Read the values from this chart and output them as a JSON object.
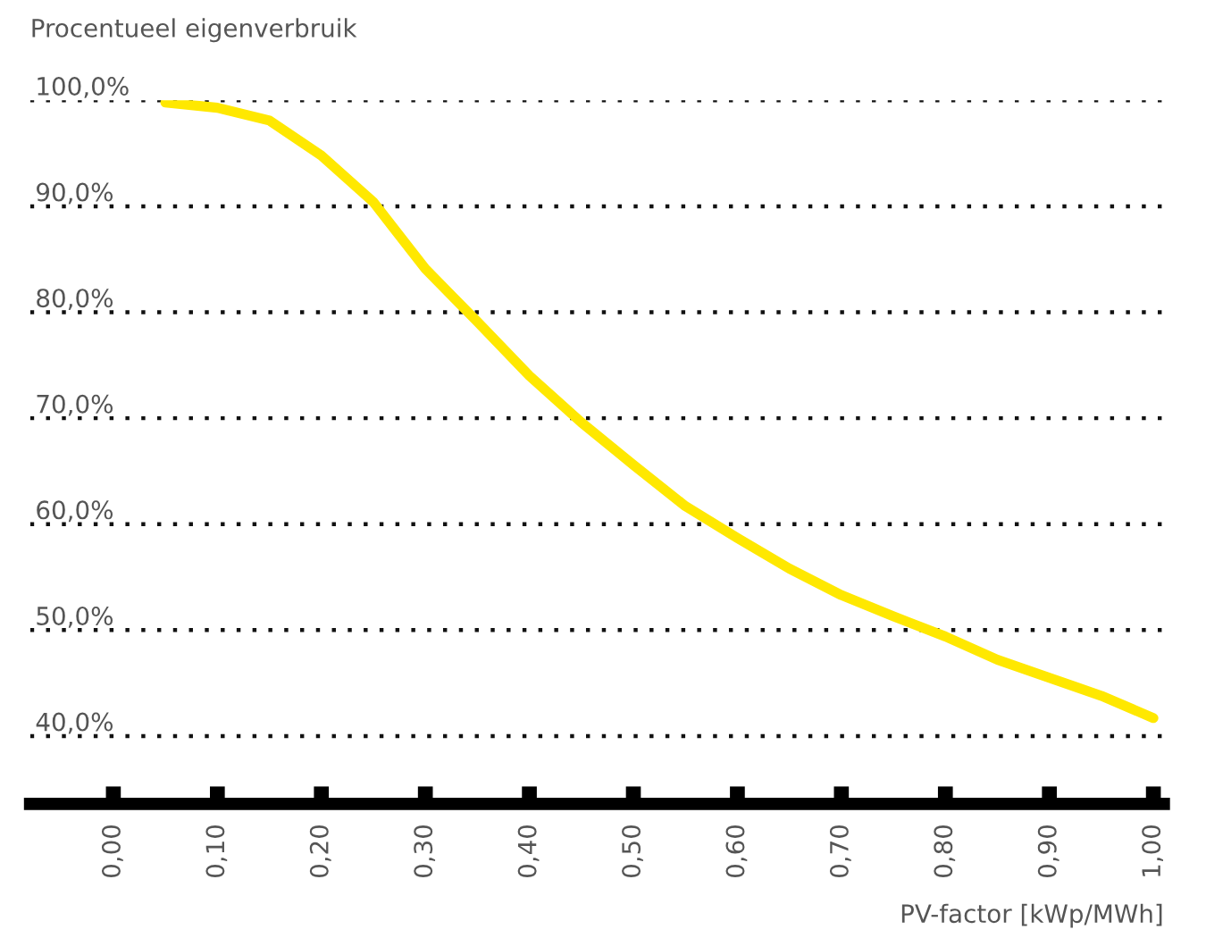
{
  "chart_data": {
    "type": "line",
    "ylabel": "Procentueel eigenverbruik",
    "xlabel": "PV-factor [kWp/MWh]",
    "x": [
      0.05,
      0.1,
      0.15,
      0.2,
      0.25,
      0.3,
      0.35,
      0.4,
      0.45,
      0.5,
      0.55,
      0.6,
      0.65,
      0.7,
      0.75,
      0.8,
      0.85,
      0.9,
      0.95,
      1.0
    ],
    "series": [
      {
        "color": "#ffe800",
        "values": [
          99.8,
          99.3,
          98.1,
          94.8,
          90.4,
          84.1,
          79.1,
          74.0,
          69.6,
          65.6,
          61.7,
          58.7,
          55.8,
          53.3,
          51.3,
          49.4,
          47.2,
          45.5,
          43.8,
          41.7
        ]
      }
    ],
    "xlim": [
      -0.08,
      1.01
    ],
    "ylim": [
      33.6,
      100
    ],
    "xticks": [
      {
        "value": 0,
        "label": "0,00"
      },
      {
        "value": 0.1,
        "label": "0,10"
      },
      {
        "value": 0.2,
        "label": "0,20"
      },
      {
        "value": 0.3,
        "label": "0,30"
      },
      {
        "value": 0.4,
        "label": "0,40"
      },
      {
        "value": 0.5,
        "label": "0,50"
      },
      {
        "value": 0.6,
        "label": "0,60"
      },
      {
        "value": 0.7,
        "label": "0,70"
      },
      {
        "value": 0.8,
        "label": "0,80"
      },
      {
        "value": 0.9,
        "label": "0,90"
      },
      {
        "value": 1.0,
        "label": "1,00"
      }
    ],
    "yticks": [
      {
        "value": 40,
        "label": "40,0%"
      },
      {
        "value": 50,
        "label": "50,0%"
      },
      {
        "value": 60,
        "label": "60,0%"
      },
      {
        "value": 70,
        "label": "70,0%"
      },
      {
        "value": 80,
        "label": "80,0%"
      },
      {
        "value": 90,
        "label": "90,0%"
      },
      {
        "value": 100,
        "label": "100,0%"
      }
    ],
    "grid": "y",
    "legend": false,
    "marker": "none",
    "line_style": "solid"
  }
}
